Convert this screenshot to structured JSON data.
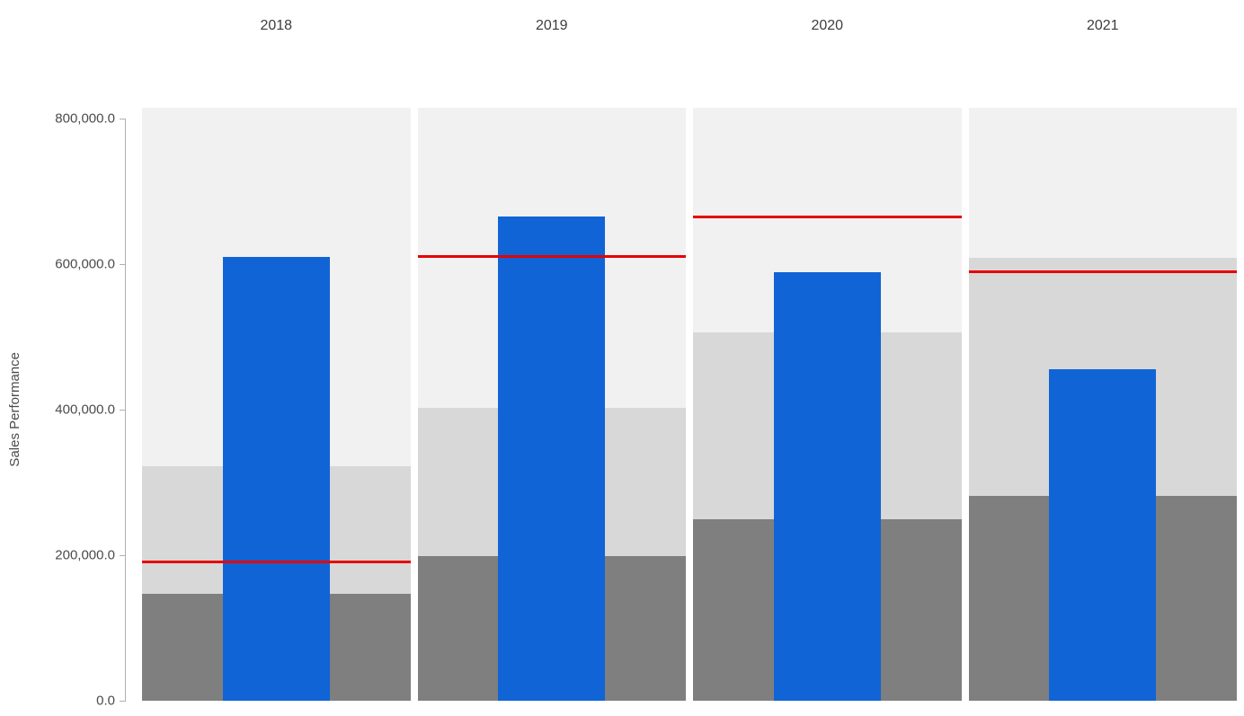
{
  "page": {
    "background_color": "#ffffff"
  },
  "chart_data": {
    "type": "bar",
    "variant": "bullet-columns-small-multiples",
    "title": "",
    "xlabel": "",
    "ylabel": "Sales Performance",
    "categories": [
      "2018",
      "2019",
      "2020",
      "2021"
    ],
    "series": [
      {
        "role": "value-bar",
        "color": "#1164d6",
        "values": [
          610000,
          665000,
          589000,
          456000
        ]
      },
      {
        "role": "target-line",
        "color": "#e60000",
        "values": [
          191000,
          610000,
          665000,
          589000
        ]
      },
      {
        "role": "band-dark",
        "color": "#7f7f7f",
        "values": [
          147000,
          199000,
          250000,
          281000
        ]
      },
      {
        "role": "band-medium",
        "color": "#d8d8d8",
        "values": [
          322000,
          403000,
          506000,
          609000
        ]
      },
      {
        "role": "band-light",
        "color": "#f1f1f1",
        "values": [
          800000,
          800000,
          800000,
          800000
        ]
      }
    ],
    "ylim": [
      0,
      800000
    ],
    "yticks": [
      0,
      200000,
      400000,
      600000,
      800000
    ],
    "ytick_labels": [
      "0.0",
      "200,000.0",
      "400,000.0",
      "600,000.0",
      "800,000.0"
    ],
    "grid": false,
    "legend": "none",
    "axis_color": "#b0b0b0",
    "tick_label_color": "#4d4b49",
    "category_label_color": "#3d3d3d"
  }
}
